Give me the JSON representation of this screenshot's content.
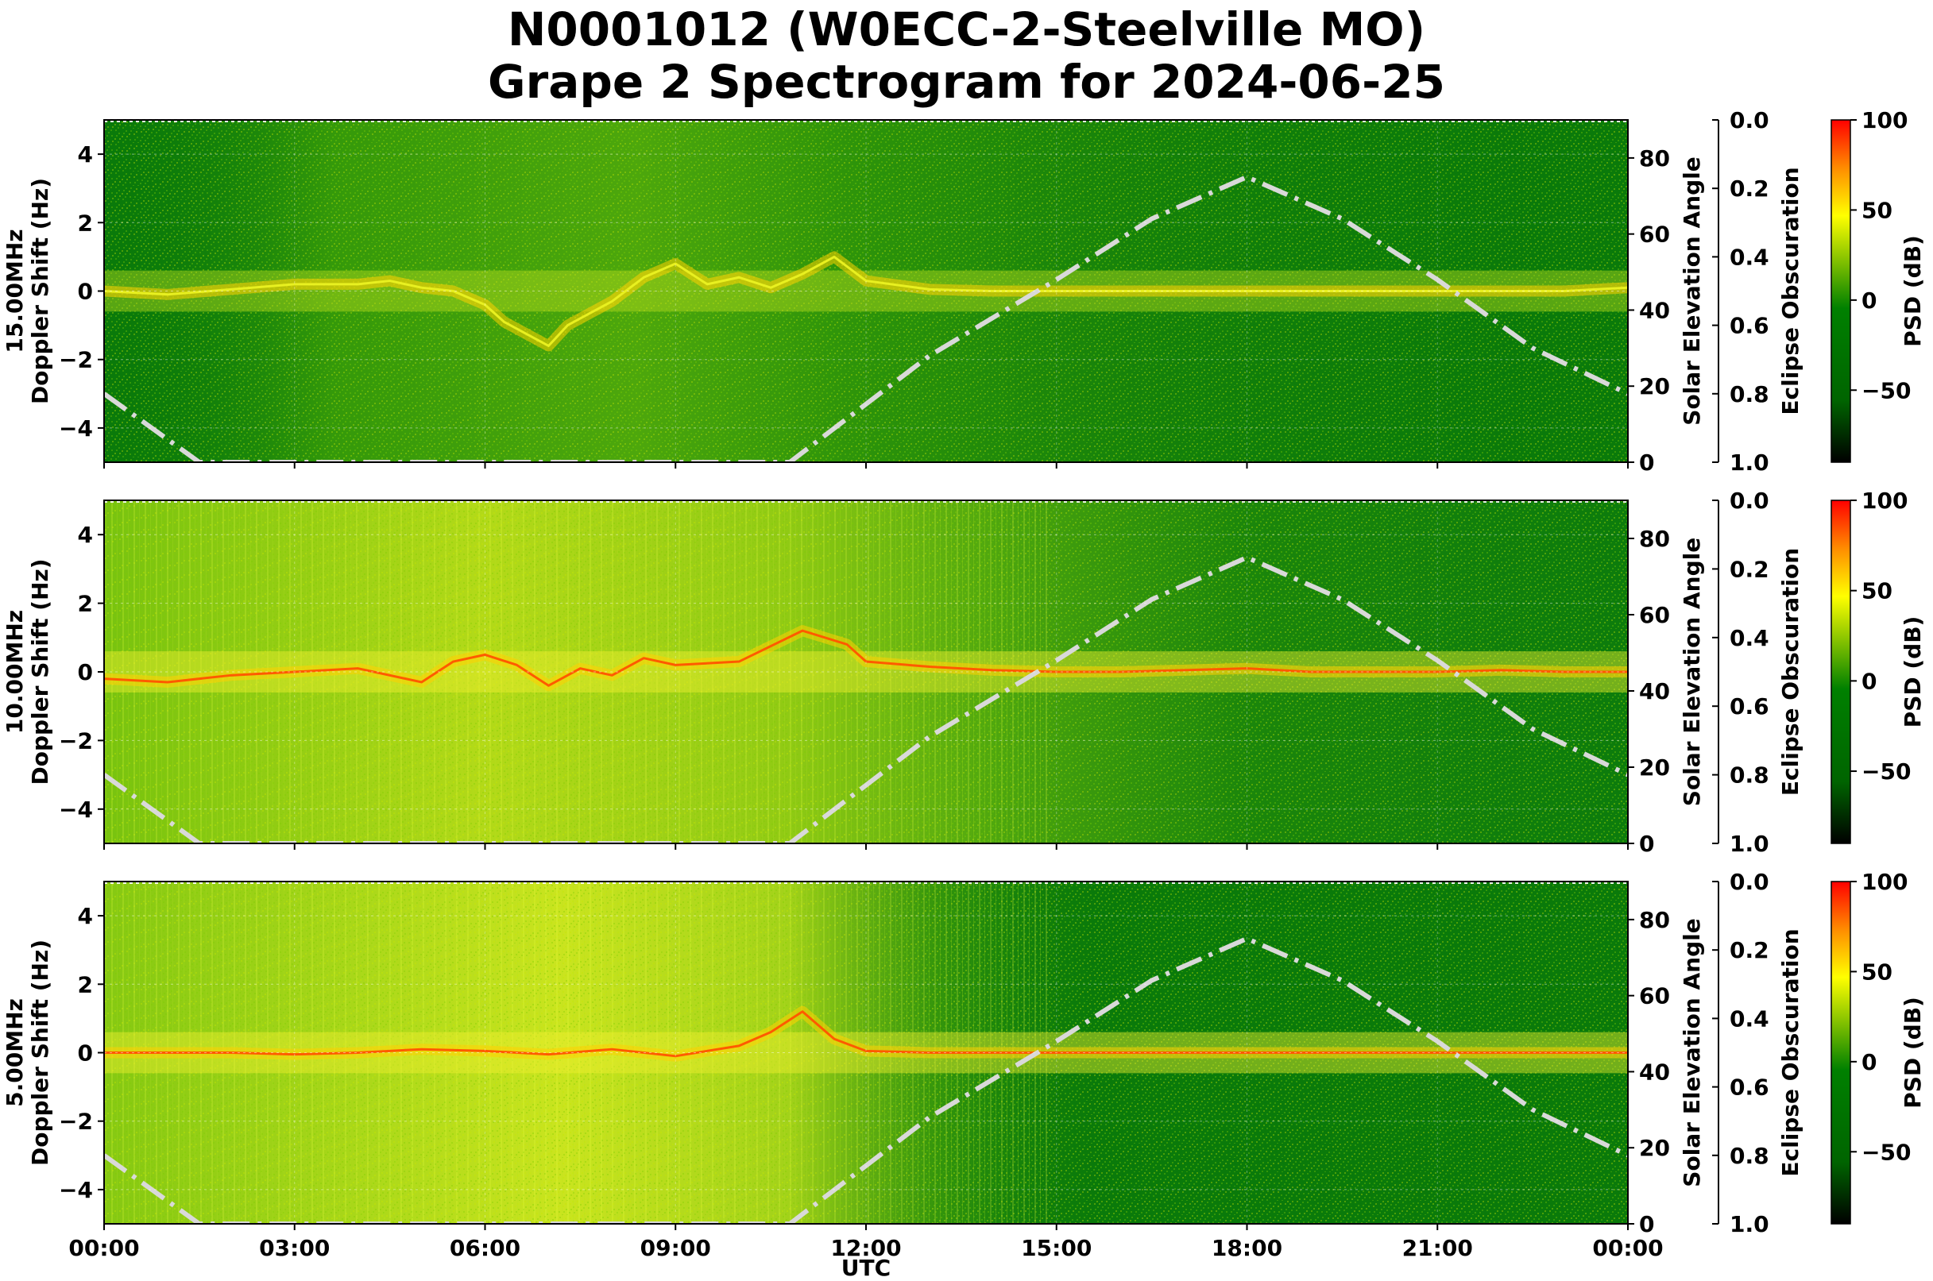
{
  "title": [
    "N0001012 (W0ECC-2-Steelville MO)",
    "Grape 2 Spectrogram for 2024-06-25"
  ],
  "xlabel": "UTC",
  "xticks": [
    "00:00",
    "03:00",
    "06:00",
    "09:00",
    "12:00",
    "15:00",
    "18:00",
    "21:00",
    "00:00"
  ],
  "colors": {
    "cmap": [
      "#000000",
      "#006400",
      "#008000",
      "#ffff00",
      "#ff8c00",
      "#ff0000"
    ],
    "elevation_curve": "#d9d9d9"
  },
  "chart_data": [
    {
      "type": "heatmap",
      "panel": "15.00MHz",
      "ylabel": [
        "15.00MHz",
        "Doppler Shift (Hz)"
      ],
      "ylim": [
        -5,
        5
      ],
      "yticks": [
        -4,
        -2,
        0,
        2,
        4
      ],
      "intensity": "low",
      "elevation_axis": {
        "label": "Solar Elevation Angle",
        "ylim": [
          0,
          90
        ],
        "ticks": [
          0,
          20,
          40,
          60,
          80
        ]
      },
      "obscuration_axis": {
        "label": "Eclipse Obscuration",
        "ticks": [
          "0.0",
          "0.2",
          "0.4",
          "0.6",
          "0.8",
          "1.0"
        ]
      },
      "colorbar": {
        "label": "PSD (dB)",
        "range": [
          -90,
          100
        ],
        "ticks": [
          100,
          50,
          0,
          -50
        ],
        "tick_labels": [
          "100",
          "50",
          "0",
          "−50"
        ]
      },
      "doppler_trace_hours": [
        0,
        1,
        2,
        3,
        4,
        4.5,
        5,
        5.5,
        6,
        6.3,
        6.7,
        7,
        7.3,
        7.7,
        8,
        8.5,
        9,
        9.5,
        10,
        10.5,
        11,
        11.5,
        12,
        13,
        14,
        15,
        16,
        17,
        18,
        19,
        20,
        21,
        22,
        23,
        24
      ],
      "doppler_trace_hz": [
        0,
        -0.1,
        0.05,
        0.2,
        0.2,
        0.3,
        0.1,
        0,
        -0.4,
        -0.9,
        -1.3,
        -1.6,
        -1.0,
        -0.6,
        -0.3,
        0.4,
        0.8,
        0.2,
        0.4,
        0.1,
        0.5,
        1.0,
        0.3,
        0.05,
        0,
        0,
        0,
        0,
        0,
        0,
        0,
        0,
        0,
        0,
        0.1
      ]
    },
    {
      "type": "heatmap",
      "panel": "10.00MHz",
      "ylabel": [
        "10.00MHz",
        "Doppler Shift (Hz)"
      ],
      "ylim": [
        -5,
        5
      ],
      "yticks": [
        -4,
        -2,
        0,
        2,
        4
      ],
      "intensity": "high",
      "elevation_axis": {
        "label": "Solar Elevation Angle",
        "ylim": [
          0,
          90
        ],
        "ticks": [
          0,
          20,
          40,
          60,
          80
        ]
      },
      "obscuration_axis": {
        "label": "Eclipse Obscuration",
        "ticks": [
          "0.0",
          "0.2",
          "0.4",
          "0.6",
          "0.8",
          "1.0"
        ]
      },
      "colorbar": {
        "label": "PSD (dB)",
        "range": [
          -90,
          100
        ],
        "ticks": [
          100,
          50,
          0,
          -50
        ],
        "tick_labels": [
          "100",
          "50",
          "0",
          "−50"
        ]
      },
      "doppler_trace_hours": [
        0,
        1,
        2,
        3,
        4,
        5,
        5.5,
        6,
        6.5,
        7,
        7.5,
        8,
        8.5,
        9,
        10,
        11,
        11.7,
        12,
        13,
        14,
        15,
        16,
        17,
        18,
        19,
        20,
        21,
        22,
        23,
        24
      ],
      "doppler_trace_hz": [
        -0.2,
        -0.3,
        -0.1,
        0,
        0.1,
        -0.3,
        0.3,
        0.5,
        0.2,
        -0.4,
        0.1,
        -0.1,
        0.4,
        0.2,
        0.3,
        1.2,
        0.8,
        0.3,
        0.15,
        0.05,
        0,
        0,
        0.05,
        0.1,
        0,
        0,
        0,
        0.05,
        0,
        0
      ]
    },
    {
      "type": "heatmap",
      "panel": "5.00MHz",
      "ylabel": [
        "5.00MHz",
        "Doppler Shift (Hz)"
      ],
      "ylim": [
        -5,
        5
      ],
      "yticks": [
        -4,
        -2,
        0,
        2,
        4
      ],
      "intensity": "high_night",
      "elevation_axis": {
        "label": "Solar Elevation Angle",
        "ylim": [
          0,
          90
        ],
        "ticks": [
          0,
          20,
          40,
          60,
          80
        ]
      },
      "obscuration_axis": {
        "label": "Eclipse Obscuration",
        "ticks": [
          "0.0",
          "0.2",
          "0.4",
          "0.6",
          "0.8",
          "1.0"
        ]
      },
      "colorbar": {
        "label": "PSD (dB)",
        "range": [
          -90,
          100
        ],
        "ticks": [
          100,
          50,
          0,
          -50
        ],
        "tick_labels": [
          "100",
          "50",
          "0",
          "−50"
        ]
      },
      "doppler_trace_hours": [
        0,
        1,
        2,
        3,
        4,
        5,
        6,
        7,
        8,
        9,
        10,
        10.5,
        11,
        11.5,
        12,
        13,
        14,
        15,
        16,
        17,
        18,
        19,
        20,
        21,
        22,
        23,
        24
      ],
      "doppler_trace_hz": [
        0,
        0,
        0,
        -0.05,
        0,
        0.1,
        0.05,
        -0.05,
        0.1,
        -0.1,
        0.2,
        0.6,
        1.2,
        0.4,
        0.05,
        0,
        0,
        0,
        0,
        0,
        0,
        0,
        0,
        0,
        0,
        0,
        0
      ]
    }
  ],
  "solar_elevation_curve": {
    "hours": [
      0,
      1.5,
      10.8,
      13,
      15,
      16.5,
      18,
      19.5,
      21,
      22.5,
      24
    ],
    "degrees": [
      18,
      0,
      0,
      28,
      48,
      64,
      75,
      64,
      48,
      30,
      18
    ]
  }
}
